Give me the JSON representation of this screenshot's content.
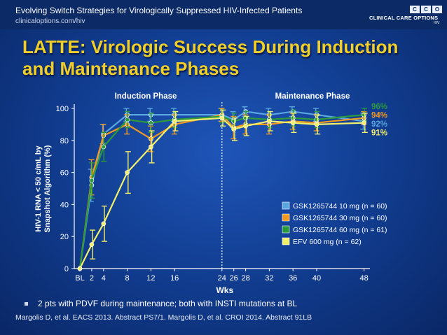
{
  "header": {
    "title": "Evolving Switch Strategies for Virologically Suppressed HIV-Infected Patients",
    "url": "clinicaloptions.com/hiv",
    "logo_letters": [
      "C",
      "C",
      "O"
    ],
    "logo_text": "CLINICAL CARE OPTIONS",
    "logo_sub": "HIV"
  },
  "slide_title": "LATTE: Virologic Success During Induction and Maintenance Phases",
  "chart_data": {
    "type": "line",
    "title": "",
    "xlabel": "Wks",
    "ylabel": "HIV-1 RNA < 50 c/mL by Snapshot Algorithm (%)",
    "ylim": [
      0,
      100
    ],
    "yticks": [
      0,
      20,
      40,
      60,
      80,
      100
    ],
    "xticks": [
      {
        "v": 0,
        "label": "BL"
      },
      {
        "v": 2,
        "label": "2"
      },
      {
        "v": 4,
        "label": "4"
      },
      {
        "v": 8,
        "label": "8"
      },
      {
        "v": 12,
        "label": "12"
      },
      {
        "v": 16,
        "label": "16"
      },
      {
        "v": 24,
        "label": "24"
      },
      {
        "v": 26,
        "label": "26"
      },
      {
        "v": 28,
        "label": "28"
      },
      {
        "v": 32,
        "label": "32"
      },
      {
        "v": 36,
        "label": "36"
      },
      {
        "v": 40,
        "label": "40"
      },
      {
        "v": 48,
        "label": "48"
      }
    ],
    "phase_labels": [
      "Induction Phase",
      "Maintenance Phase"
    ],
    "phase_divider_week": 24,
    "x": [
      0,
      2,
      4,
      8,
      12,
      16,
      24,
      26,
      28,
      32,
      36,
      40,
      48
    ],
    "series": [
      {
        "name": "GSK1265744 10 mg (n = 60)",
        "color": "#5aa6de",
        "end_label": "92%",
        "values": [
          0,
          52,
          84,
          96,
          96,
          96,
          96,
          93,
          98,
          96,
          98,
          96,
          92
        ],
        "err": [
          0,
          10,
          6,
          4,
          4,
          4,
          4,
          5,
          3,
          4,
          3,
          4,
          5
        ]
      },
      {
        "name": "GSK1265744 30 mg (n = 60)",
        "color": "#f39a1d",
        "end_label": "94%",
        "values": [
          0,
          57,
          83,
          90,
          81,
          90,
          96,
          88,
          90,
          90,
          92,
          91,
          94
        ],
        "err": [
          0,
          11,
          7,
          6,
          8,
          6,
          4,
          7,
          6,
          6,
          5,
          5,
          4
        ]
      },
      {
        "name": "GSK1265744 60 mg (n = 61)",
        "color": "#2a9a3c",
        "end_label": "96%",
        "values": [
          0,
          55,
          76,
          93,
          91,
          93,
          95,
          92,
          94,
          93,
          94,
          93,
          96
        ],
        "err": [
          0,
          11,
          9,
          5,
          6,
          5,
          4,
          5,
          4,
          5,
          5,
          5,
          4
        ]
      },
      {
        "name": "EFV 600 mg (n = 62)",
        "color": "#f2ef6b",
        "end_label": "91%",
        "values": [
          0,
          15,
          28,
          60,
          76,
          92,
          94,
          87,
          89,
          92,
          91,
          90,
          91
        ],
        "err": [
          0,
          9,
          11,
          13,
          10,
          6,
          5,
          7,
          6,
          6,
          6,
          6,
          6
        ]
      }
    ],
    "legend": "bottom-right"
  },
  "note": "2 pts with PDVF during maintenance; both with INSTI mutations at BL",
  "reference": "Margolis D, et al. EACS 2013. Abstract PS7/1. Margolis D, et al. CROI 2014. Abstract 91LB"
}
